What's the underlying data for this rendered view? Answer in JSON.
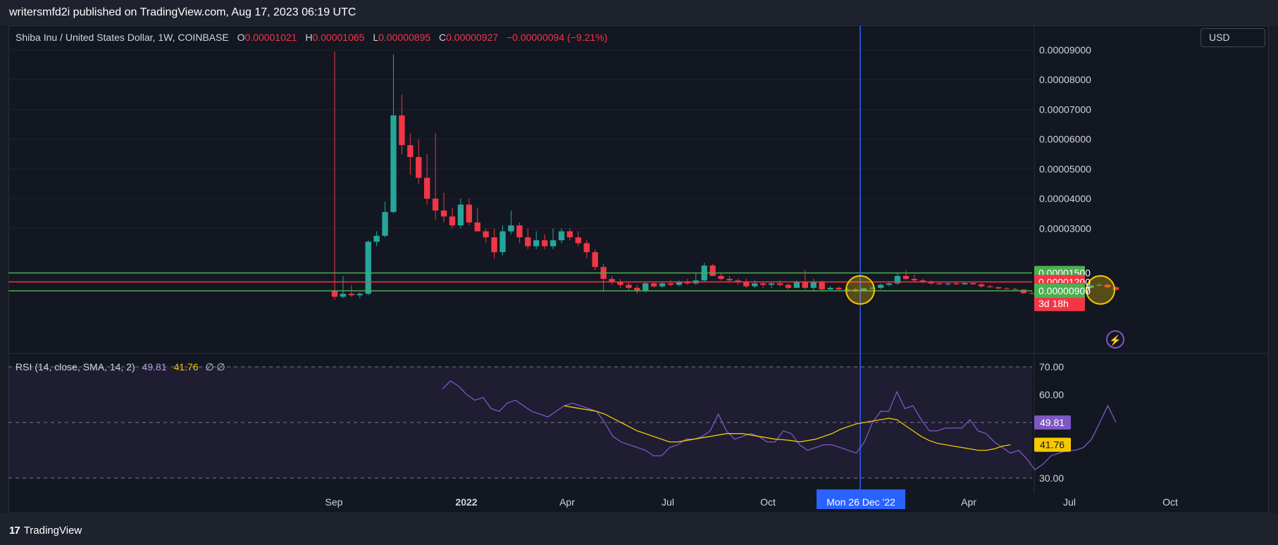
{
  "header": {
    "publisher_text": "writersmfd2i published on TradingView.com, Aug 17, 2023 06:19 UTC"
  },
  "footer": {
    "brand": "TradingView",
    "logo_text": "17"
  },
  "legend": {
    "symbol": "Shiba Inu / United States Dollar, 1W, COINBASE",
    "o_key": "O",
    "o_val": "0.00001021",
    "h_key": "H",
    "h_val": "0.00001065",
    "l_key": "L",
    "l_val": "0.00000895",
    "c_key": "C",
    "c_val": "0.00000927",
    "change": "−0.00000094 (−9.21%)"
  },
  "currency": "USD",
  "rsi_legend": {
    "label": "RSI (14, close, SMA, 14, 2)",
    "rsi_val": "49.81",
    "ma_val": "41.76",
    "extra": "∅ ∅"
  },
  "colors": {
    "bg": "#131722",
    "up": "#26a69a",
    "down": "#f23645",
    "rsi": "#7e57c2",
    "rsi_ma": "#f5c800",
    "crosshair": "#2962ff",
    "support": "#4caf50",
    "resistance": "#f23645"
  },
  "chart_data": [
    {
      "type": "candlestick",
      "title": "Shiba Inu / United States Dollar, 1W, COINBASE",
      "ylim": [
        0,
        9e-05
      ],
      "ytick_labels": [
        "0.00009000",
        "0.00008000",
        "0.00007000",
        "0.00006000",
        "0.00005000",
        "0.00004000",
        "0.00003000"
      ],
      "xtick_labels": [
        "Sep",
        "2022",
        "Apr",
        "Jul",
        "Oct",
        "Apr",
        "Jul",
        "Oct"
      ],
      "crosshair_label": "Mon 26 Dec '22",
      "levels": [
        {
          "value": 1.5e-05,
          "label": "0.00001500",
          "color": "#4caf50"
        },
        {
          "value": 1.2e-05,
          "label": "0.00001200",
          "color": "#f23645"
        },
        {
          "value": 9.27e-06,
          "label": "0.00000927",
          "sublabel": "3d 18h",
          "color": "#f23645"
        },
        {
          "value": 9e-06,
          "label": "0.00000900",
          "color": "#4caf50"
        }
      ],
      "candles": [
        [
          9e-06,
          8.95e-05,
          6e-06,
          7e-06
        ],
        [
          7e-06,
          1.4e-05,
          6.5e-06,
          8e-06
        ],
        [
          8e-06,
          1.1e-05,
          7e-06,
          7.5e-06
        ],
        [
          7.5e-06,
          8.5e-06,
          6.5e-06,
          8e-06
        ],
        [
          8e-06,
          2.6e-05,
          7.5e-06,
          2.55e-05
        ],
        [
          2.55e-05,
          2.9e-05,
          2.4e-05,
          2.75e-05
        ],
        [
          2.75e-05,
          3.9e-05,
          2.7e-05,
          3.55e-05
        ],
        [
          3.55e-05,
          8.85e-05,
          3.5e-05,
          6.8e-05
        ],
        [
          6.8e-05,
          7.5e-05,
          5.5e-05,
          5.8e-05
        ],
        [
          5.8e-05,
          6.2e-05,
          4.8e-05,
          5.4e-05
        ],
        [
          5.4e-05,
          6e-05,
          4.5e-05,
          4.7e-05
        ],
        [
          4.7e-05,
          5.5e-05,
          3.8e-05,
          4e-05
        ],
        [
          4e-05,
          6.2e-05,
          3.3e-05,
          3.6e-05
        ],
        [
          3.6e-05,
          4.2e-05,
          3.2e-05,
          3.4e-05
        ],
        [
          3.4e-05,
          3.7e-05,
          3e-05,
          3.1e-05
        ],
        [
          3.1e-05,
          4e-05,
          3e-05,
          3.8e-05
        ],
        [
          3.8e-05,
          4e-05,
          3.1e-05,
          3.2e-05
        ],
        [
          3.2e-05,
          3.7e-05,
          2.9e-05,
          2.9e-05
        ],
        [
          2.9e-05,
          3e-05,
          2.5e-05,
          2.7e-05
        ],
        [
          2.7e-05,
          3e-05,
          2e-05,
          2.2e-05
        ],
        [
          2.2e-05,
          3.1e-05,
          2.1e-05,
          2.9e-05
        ],
        [
          2.9e-05,
          3.6e-05,
          2.8e-05,
          3.1e-05
        ],
        [
          3.1e-05,
          3.2e-05,
          2.5e-05,
          2.7e-05
        ],
        [
          2.7e-05,
          3e-05,
          2.3e-05,
          2.4e-05
        ],
        [
          2.4e-05,
          2.9e-05,
          2.3e-05,
          2.6e-05
        ],
        [
          2.6e-05,
          2.8e-05,
          2.3e-05,
          2.4e-05
        ],
        [
          2.4e-05,
          3e-05,
          2.3e-05,
          2.6e-05
        ],
        [
          2.6e-05,
          3e-05,
          2.5e-05,
          2.9e-05
        ],
        [
          2.9e-05,
          3e-05,
          2.6e-05,
          2.7e-05
        ],
        [
          2.7e-05,
          2.9e-05,
          2.4e-05,
          2.5e-05
        ],
        [
          2.5e-05,
          2.6e-05,
          2e-05,
          2.2e-05
        ],
        [
          2.2e-05,
          2.3e-05,
          1.6e-05,
          1.7e-05
        ],
        [
          1.7e-05,
          1.8e-05,
          9e-06,
          1.3e-05
        ],
        [
          1.3e-05,
          1.4e-05,
          1.1e-05,
          1.2e-05
        ],
        [
          1.2e-05,
          1.3e-05,
          1e-05,
          1.1e-05
        ],
        [
          1.1e-05,
          1.2e-05,
          9e-06,
          1e-05
        ],
        [
          1e-05,
          1.1e-05,
          8e-06,
          9e-06
        ],
        [
          9e-06,
          1.2e-05,
          8.5e-06,
          1.15e-05
        ],
        [
          1.15e-05,
          1.2e-05,
          1e-05,
          1.05e-05
        ],
        [
          1.05e-05,
          1.2e-05,
          1e-05,
          1.15e-05
        ],
        [
          1.15e-05,
          1.25e-05,
          1.05e-05,
          1.1e-05
        ],
        [
          1.1e-05,
          1.25e-05,
          1.05e-05,
          1.2e-05
        ],
        [
          1.2e-05,
          1.3e-05,
          1.1e-05,
          1.15e-05
        ],
        [
          1.15e-05,
          1.5e-05,
          1.1e-05,
          1.25e-05
        ],
        [
          1.25e-05,
          1.85e-05,
          1.2e-05,
          1.75e-05
        ],
        [
          1.75e-05,
          1.8e-05,
          1.4e-05,
          1.4e-05
        ],
        [
          1.4e-05,
          1.5e-05,
          1.25e-05,
          1.3e-05
        ],
        [
          1.3e-05,
          1.4e-05,
          1.2e-05,
          1.25e-05
        ],
        [
          1.25e-05,
          1.3e-05,
          1.1e-05,
          1.2e-05
        ],
        [
          1.2e-05,
          1.3e-05,
          1e-05,
          1.05e-05
        ],
        [
          1.05e-05,
          1.25e-05,
          1e-05,
          1.15e-05
        ],
        [
          1.15e-05,
          1.2e-05,
          1e-05,
          1.1e-05
        ],
        [
          1.1e-05,
          1.2e-05,
          1e-05,
          1.15e-05
        ],
        [
          1.15e-05,
          1.25e-05,
          1.05e-05,
          1.1e-05
        ],
        [
          1.1e-05,
          1.15e-05,
          9.5e-06,
          1e-05
        ],
        [
          1e-05,
          1.25e-05,
          1e-05,
          1.2e-05
        ],
        [
          1.2e-05,
          1.6e-05,
          9.5e-06,
          1e-05
        ],
        [
          1e-05,
          1.3e-05,
          9e-06,
          1.2e-05
        ],
        [
          1.2e-05,
          1.25e-05,
          9e-06,
          9.5e-06
        ],
        [
          9.5e-06,
          1.05e-05,
          9e-06,
          1e-05
        ],
        [
          1e-05,
          1.05e-05,
          9e-06,
          9.5e-06
        ],
        [
          9.5e-06,
          1e-05,
          9e-06,
          9.5e-06
        ],
        [
          9.5e-06,
          1e-05,
          8.5e-06,
          9e-06
        ],
        [
          9e-06,
          1e-05,
          8.8e-06,
          9.8e-06
        ],
        [
          9.8e-06,
          1.05e-05,
          9.5e-06,
          1e-05
        ],
        [
          1e-05,
          1.15e-05,
          9.5e-06,
          1.1e-05
        ],
        [
          1.1e-05,
          1.2e-05,
          1.05e-05,
          1.15e-05
        ],
        [
          1.15e-05,
          1.5e-05,
          1.1e-05,
          1.4e-05
        ],
        [
          1.4e-05,
          1.6e-05,
          1.25e-05,
          1.3e-05
        ],
        [
          1.3e-05,
          1.45e-05,
          1.2e-05,
          1.25e-05
        ],
        [
          1.25e-05,
          1.3e-05,
          1.15e-05,
          1.2e-05
        ],
        [
          1.2e-05,
          1.25e-05,
          1.1e-05,
          1.15e-05
        ],
        [
          1.15e-05,
          1.2e-05,
          1.1e-05,
          1.12e-05
        ],
        [
          1.12e-05,
          1.2e-05,
          1.08e-05,
          1.15e-05
        ],
        [
          1.15e-05,
          1.2e-05,
          1.1e-05,
          1.12e-05
        ],
        [
          1.12e-05,
          1.18e-05,
          1.1e-05,
          1.16e-05
        ],
        [
          1.16e-05,
          1.2e-05,
          1.1e-05,
          1.12e-05
        ],
        [
          1.12e-05,
          1.15e-05,
          1e-05,
          1.05e-05
        ],
        [
          1.05e-05,
          1.1e-05,
          1e-05,
          1.02e-05
        ],
        [
          1.02e-05,
          1.05e-05,
          9.5e-06,
          9.8e-06
        ],
        [
          9.8e-06,
          1.02e-05,
          9.4e-06,
          9.6e-06
        ],
        [
          9.6e-06,
          1e-05,
          9.2e-06,
          9.4e-06
        ],
        [
          9.4e-06,
          9.6e-06,
          8e-06,
          8.2e-06
        ],
        [
          8.2e-06,
          8.8e-06,
          7.8e-06,
          8e-06
        ],
        [
          8e-06,
          8.6e-06,
          7.8e-06,
          8.4e-06
        ],
        [
          8.4e-06,
          8.8e-06,
          8e-06,
          8.2e-06
        ],
        [
          8.2e-06,
          8.8e-06,
          8e-06,
          8.6e-06
        ],
        [
          8.6e-06,
          9e-06,
          8.2e-06,
          8.4e-06
        ],
        [
          8.4e-06,
          9.4e-06,
          8.3e-06,
          9.2e-06
        ],
        [
          9.2e-06,
          1.05e-05,
          9e-06,
          1e-05
        ],
        [
          1e-05,
          1.1e-05,
          9.8e-06,
          1.08e-05
        ],
        [
          1.08e-05,
          1.15e-05,
          1.05e-05,
          1.1e-05
        ],
        [
          1.1e-05,
          1.14e-05,
          9.8e-06,
          1.02e-05
        ],
        [
          1.02e-05,
          1.07e-05,
          9.2e-06,
          9.3e-06
        ]
      ]
    },
    {
      "type": "line",
      "title": "RSI (14, close, SMA, 14, 2)",
      "ylim": [
        30,
        70
      ],
      "ytick_labels": [
        "70.00",
        "60.00",
        "30.00"
      ],
      "series": [
        {
          "name": "RSI",
          "value_label": "49.81",
          "values": [
            62,
            65,
            63,
            60,
            58,
            59,
            55,
            54,
            57,
            58,
            56,
            54,
            53,
            52,
            54,
            56,
            57,
            56,
            55,
            54,
            50,
            45,
            43,
            42,
            41,
            40,
            38,
            38,
            41,
            42,
            44,
            44,
            45,
            47,
            53,
            47,
            44,
            45,
            46,
            45,
            43,
            43,
            47,
            46,
            42,
            40,
            41,
            42,
            42,
            41,
            40,
            39,
            43,
            50,
            54,
            54,
            61,
            55,
            56,
            51,
            47,
            47,
            48,
            48,
            48,
            51,
            47,
            46,
            43,
            41,
            39,
            40,
            37,
            33,
            35,
            38,
            39,
            40,
            40,
            41,
            44,
            50,
            56,
            50
          ]
        },
        {
          "name": "RSI-based MA",
          "value_label": "41.76",
          "values": [
            null,
            null,
            null,
            null,
            null,
            null,
            null,
            null,
            null,
            null,
            null,
            null,
            null,
            null,
            null,
            56,
            55.5,
            55,
            54.5,
            54,
            53,
            51.5,
            50,
            48.5,
            47,
            46,
            45,
            44,
            43,
            43,
            43.5,
            44,
            44.5,
            45,
            45.5,
            46,
            46,
            46,
            45.5,
            45,
            44.5,
            44,
            43.8,
            43.5,
            43,
            43.5,
            44,
            45,
            46,
            47.5,
            48.5,
            49.5,
            50,
            50.5,
            51,
            51.5,
            51,
            49,
            47,
            45,
            43.5,
            42.5,
            42,
            41.5,
            41,
            40.5,
            40,
            40,
            40.5,
            41.5,
            42
          ]
        }
      ],
      "levels": [
        70,
        50,
        30
      ]
    }
  ]
}
